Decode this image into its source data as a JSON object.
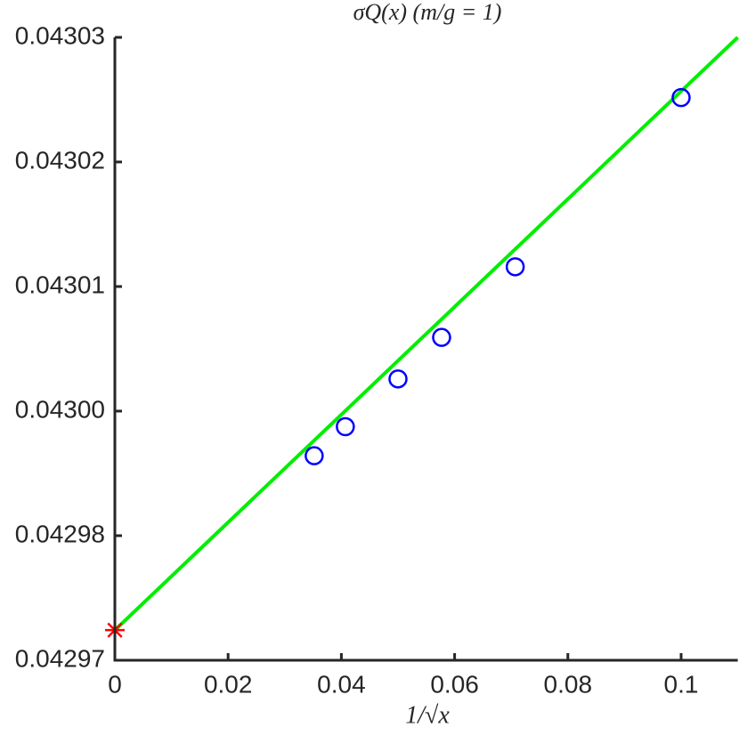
{
  "chart_data": {
    "type": "scatter",
    "title": "σQ(x) (m/g = 1)",
    "x_label": "1/√x",
    "xlim": [
      0,
      0.11
    ],
    "xticks": [
      0,
      0.02,
      0.04,
      0.06,
      0.08,
      0.1
    ],
    "ylim": [
      0.042972,
      0.043032
    ],
    "yticks": [
      {
        "value": 0.042972,
        "label": "0.04297"
      },
      {
        "value": 0.042984,
        "label": "0.04298"
      },
      {
        "value": 0.042996,
        "label": "0.04300"
      },
      {
        "value": 0.043008,
        "label": "0.04301"
      },
      {
        "value": 0.04302,
        "label": "0.04302"
      },
      {
        "value": 0.043032,
        "label": "0.04303"
      }
    ],
    "grid": false,
    "series": [
      {
        "type": "line",
        "color": "#00ee00",
        "x": [
          0,
          0.11
        ],
        "values": [
          0.0429749,
          0.043032
        ]
      },
      {
        "type": "scatter",
        "marker": "circle",
        "color": "#0000ff",
        "x": [
          0.0352,
          0.0407,
          0.05,
          0.0577,
          0.0707,
          0.1
        ],
        "values": [
          0.0429917,
          0.0429945,
          0.0429991,
          0.0430031,
          0.0430099,
          0.0430262
        ]
      },
      {
        "type": "scatter",
        "marker": "star",
        "color": "#ff0000",
        "x": [
          0
        ],
        "values": [
          0.0429749
        ]
      }
    ]
  }
}
